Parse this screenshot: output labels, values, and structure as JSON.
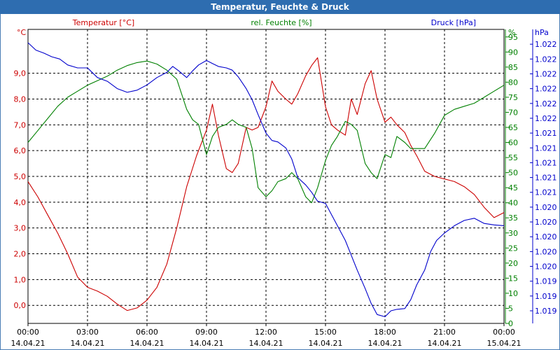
{
  "window": {
    "title": "Temperatur, Feuchte & Druck"
  },
  "chart_data": {
    "type": "line",
    "title": "Temperatur, Feuchte & Druck",
    "grid": true,
    "x": {
      "min_hours": 0,
      "max_hours": 24,
      "tick_hours": [
        0,
        3,
        6,
        9,
        12,
        15,
        18,
        21,
        24
      ],
      "tick_labels": [
        [
          "00:00",
          "14.04.21"
        ],
        [
          "03:00",
          "14.04.21"
        ],
        [
          "06:00",
          "14.04.21"
        ],
        [
          "09:00",
          "14.04.21"
        ],
        [
          "12:00",
          "14.04.21"
        ],
        [
          "15:00",
          "14.04.21"
        ],
        [
          "18:00",
          "14.04.21"
        ],
        [
          "21:00",
          "14.04.21"
        ],
        [
          "00:00",
          "15.04.21"
        ]
      ]
    },
    "axes": {
      "temperature": {
        "unit": "°C",
        "min": -0.7,
        "max": 10.7,
        "ticks": [
          0,
          1,
          2,
          3,
          4,
          5,
          6,
          7,
          8,
          9
        ],
        "tick_labels": [
          "0,0",
          "1,0",
          "2,0",
          "3,0",
          "4,0",
          "5,0",
          "6,0",
          "7,0",
          "8,0",
          "9,0"
        ],
        "color": "#cc0000"
      },
      "humidity": {
        "unit": "%",
        "min": 0,
        "max": 97.5,
        "ticks": [
          0,
          5,
          10,
          15,
          20,
          25,
          30,
          35,
          40,
          45,
          50,
          55,
          60,
          65,
          70,
          75,
          80,
          85,
          90,
          95
        ],
        "tick_labels": [
          "0",
          "5",
          "10",
          "15",
          "20",
          "25",
          "30",
          "35",
          "40",
          "45",
          "50",
          "55",
          "60",
          "65",
          "70",
          "75",
          "80",
          "85",
          "90",
          "95"
        ],
        "color": "#008000"
      },
      "pressure": {
        "unit": "hPa",
        "min": 1018.73,
        "max": 1022.7,
        "ticks": [
          1018.9,
          1019.1,
          1019.3,
          1019.5,
          1019.7,
          1019.9,
          1020.1,
          1020.3,
          1020.5,
          1020.7,
          1020.9,
          1021.1,
          1021.3,
          1021.5,
          1021.7,
          1021.9,
          1022.1,
          1022.3,
          1022.5
        ],
        "tick_labels": [
          "1.019",
          "1.019",
          "1.019",
          "1.020",
          "1.020",
          "1.020",
          "1.020",
          "1.020",
          "1.021",
          "1.021",
          "1.021",
          "1.021",
          "1.021",
          "1.022",
          "1.022",
          "1.022",
          "1.022",
          "1.022",
          "1.022"
        ],
        "color": "#0000cc"
      }
    },
    "series": [
      {
        "name": "Temperatur [°C]",
        "axis": "temperature",
        "color": "#cc0000",
        "x": [
          0,
          0.5,
          1,
          1.5,
          2,
          2.5,
          3,
          3.5,
          4,
          4.5,
          5,
          5.5,
          6,
          6.5,
          7,
          7.5,
          8,
          8.5,
          9,
          9.3,
          9.6,
          10,
          10.3,
          10.6,
          11,
          11.3,
          11.6,
          12,
          12.3,
          12.6,
          13,
          13.3,
          13.6,
          14,
          14.3,
          14.6,
          15,
          15.3,
          15.6,
          16,
          16.3,
          16.6,
          17,
          17.3,
          17.6,
          18,
          18.3,
          18.6,
          19,
          19.3,
          19.6,
          20,
          20.5,
          21,
          21.5,
          22,
          22.5,
          23,
          23.5,
          24
        ],
        "values": [
          4.8,
          4.2,
          3.5,
          2.8,
          2.0,
          1.1,
          0.7,
          0.55,
          0.35,
          0.05,
          -0.2,
          -0.1,
          0.2,
          0.7,
          1.6,
          3.0,
          4.6,
          5.8,
          6.8,
          7.8,
          6.6,
          5.3,
          5.15,
          5.5,
          6.9,
          6.8,
          6.9,
          7.7,
          8.7,
          8.3,
          8.0,
          7.8,
          8.2,
          8.9,
          9.3,
          9.6,
          7.7,
          7.0,
          6.8,
          6.6,
          8.0,
          7.4,
          8.6,
          9.1,
          8.0,
          7.1,
          7.3,
          7.0,
          6.7,
          6.2,
          5.8,
          5.2,
          5.0,
          4.9,
          4.8,
          4.6,
          4.3,
          3.8,
          3.4,
          3.6
        ]
      },
      {
        "name": "rel. Feuchte [%]",
        "axis": "humidity",
        "color": "#008000",
        "x": [
          0,
          0.5,
          1,
          1.5,
          2,
          2.5,
          3,
          3.5,
          4,
          4.5,
          5,
          5.5,
          6,
          6.5,
          7,
          7.5,
          8,
          8.3,
          8.6,
          9,
          9.3,
          9.6,
          10,
          10.3,
          10.6,
          11,
          11.3,
          11.6,
          12,
          12.3,
          12.6,
          13,
          13.3,
          13.6,
          14,
          14.3,
          14.6,
          15,
          15.3,
          15.6,
          16,
          16.3,
          16.6,
          17,
          17.3,
          17.6,
          18,
          18.3,
          18.6,
          19,
          19.3,
          19.6,
          20,
          20.5,
          21,
          21.5,
          22,
          22.5,
          23,
          23.5,
          24
        ],
        "values": [
          60,
          64,
          68,
          72,
          75,
          77,
          79,
          80.5,
          82,
          84,
          85.5,
          86.5,
          87,
          86,
          84,
          81,
          71,
          67.5,
          66,
          56,
          62,
          65,
          66,
          67.5,
          66,
          65,
          58,
          45,
          42,
          44,
          47,
          48,
          50,
          48,
          42,
          40,
          45,
          54,
          59,
          62,
          67,
          66,
          64,
          53,
          50,
          48,
          56,
          55,
          62,
          60,
          58,
          58,
          58,
          63,
          69,
          71,
          72,
          73,
          75,
          77,
          79
        ]
      },
      {
        "name": "Druck [hPa]",
        "axis": "pressure",
        "color": "#0000cc",
        "x": [
          0,
          0.4,
          0.8,
          1.2,
          1.6,
          2,
          2.5,
          3,
          3.5,
          4,
          4.5,
          5,
          5.5,
          6,
          6.5,
          7,
          7.3,
          7.6,
          8,
          8.3,
          8.6,
          9,
          9.3,
          9.6,
          10,
          10.3,
          10.6,
          11,
          11.3,
          11.6,
          12,
          12.3,
          12.6,
          13,
          13.3,
          13.6,
          14,
          14.3,
          14.6,
          15,
          15.3,
          15.6,
          16,
          16.3,
          16.6,
          17,
          17.3,
          17.6,
          18,
          18.3,
          18.6,
          19,
          19.3,
          19.6,
          20,
          20.3,
          20.6,
          21,
          21.5,
          22,
          22.5,
          23,
          23.5,
          24
        ],
        "values": [
          1022.52,
          1022.42,
          1022.38,
          1022.33,
          1022.3,
          1022.22,
          1022.18,
          1022.18,
          1022.05,
          1022.0,
          1021.9,
          1021.85,
          1021.88,
          1021.95,
          1022.05,
          1022.12,
          1022.2,
          1022.14,
          1022.05,
          1022.14,
          1022.22,
          1022.28,
          1022.24,
          1022.2,
          1022.18,
          1022.15,
          1022.06,
          1021.9,
          1021.75,
          1021.55,
          1021.3,
          1021.2,
          1021.18,
          1021.1,
          1020.95,
          1020.7,
          1020.6,
          1020.5,
          1020.38,
          1020.35,
          1020.2,
          1020.05,
          1019.85,
          1019.65,
          1019.45,
          1019.2,
          1019.0,
          1018.85,
          1018.82,
          1018.9,
          1018.92,
          1018.93,
          1019.05,
          1019.25,
          1019.45,
          1019.7,
          1019.85,
          1019.95,
          1020.05,
          1020.12,
          1020.15,
          1020.08,
          1020.06,
          1020.05
        ]
      }
    ]
  }
}
